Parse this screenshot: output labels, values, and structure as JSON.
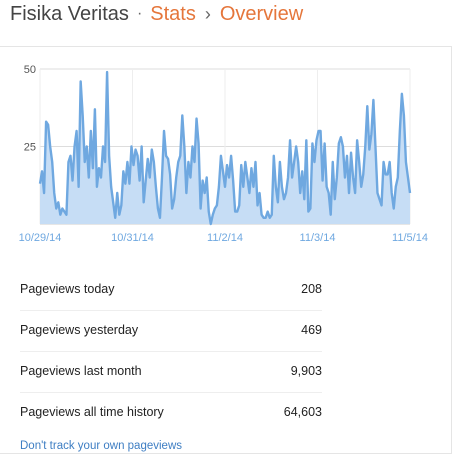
{
  "header": {
    "blog_name": "Fisika Veritas",
    "separator": "·",
    "crumb_stats": "Stats",
    "chevron": "›",
    "crumb_overview": "Overview"
  },
  "chart_data": {
    "type": "area",
    "title": "",
    "xlabel": "",
    "ylabel": "",
    "x_ticks": [
      "10/29/14",
      "10/31/14",
      "11/2/14",
      "11/3/14",
      "11/5/14"
    ],
    "y_ticks": [
      25,
      50
    ],
    "ylim": [
      0,
      50
    ],
    "grid": true,
    "colors": {
      "line": "#6fa8e0",
      "fill": "#c6ddf5",
      "axis_text": "#6fa8e0",
      "ytick_text": "#555555",
      "grid": "#dddddd"
    },
    "series": [
      {
        "values": [
          13,
          17,
          10,
          33,
          32,
          25,
          20,
          10,
          5,
          7,
          3,
          5,
          4,
          3,
          20,
          22,
          14,
          25,
          30,
          12,
          46,
          35,
          20,
          25,
          15,
          30,
          18,
          37,
          12,
          18,
          15,
          25,
          20,
          49,
          22,
          12,
          7,
          2,
          10,
          3,
          6,
          17,
          13,
          20,
          13,
          25,
          19,
          24,
          22,
          14,
          25,
          7,
          14,
          21,
          15,
          24,
          20,
          12,
          5,
          2,
          15,
          30,
          22,
          21,
          16,
          5,
          8,
          15,
          20,
          22,
          35,
          25,
          10,
          20,
          15,
          25,
          20,
          34,
          26,
          5,
          14,
          10,
          15,
          4,
          0,
          3,
          5,
          6,
          12,
          22,
          17,
          12,
          19,
          15,
          22,
          14,
          4,
          4,
          6,
          19,
          12,
          20,
          15,
          10,
          18,
          12,
          20,
          6,
          10,
          3,
          2,
          2,
          4,
          2,
          3,
          22,
          12,
          7,
          20,
          12,
          8,
          10,
          15,
          27,
          15,
          20,
          25,
          20,
          10,
          17,
          8,
          27,
          4,
          5,
          26,
          20,
          27,
          30,
          30,
          14,
          26,
          12,
          10,
          3,
          20,
          8,
          15,
          26,
          28,
          25,
          15,
          22,
          10,
          23,
          15,
          10,
          27,
          20,
          12,
          16,
          25,
          38,
          24,
          29,
          40,
          25,
          10,
          8,
          6,
          20,
          16,
          16,
          20,
          10,
          5,
          12,
          15,
          30,
          42,
          35,
          20,
          15,
          10
        ]
      }
    ]
  },
  "stats": [
    {
      "label": "Pageviews today",
      "value": "208"
    },
    {
      "label": "Pageviews yesterday",
      "value": "469"
    },
    {
      "label": "Pageviews last month",
      "value": "9,903"
    },
    {
      "label": "Pageviews all time history",
      "value": "64,603"
    }
  ],
  "footer": {
    "track_link": "Don't track your own pageviews"
  }
}
